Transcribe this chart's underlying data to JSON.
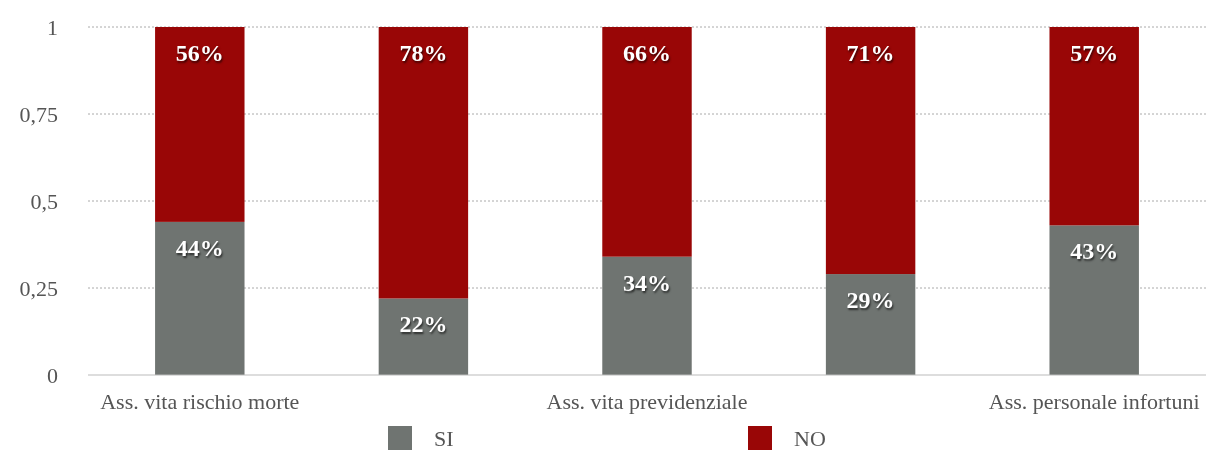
{
  "chart_data": {
    "type": "bar",
    "stacked": true,
    "categories": [
      "Ass. vita rischio morte",
      null,
      "Ass. vita previdenziale",
      null,
      "Ass. personale infortuni"
    ],
    "series": [
      {
        "name": "SI",
        "color": "#6f7471",
        "values": [
          0.44,
          0.22,
          0.34,
          0.29,
          0.43
        ],
        "value_labels": [
          "44%",
          "22%",
          "34%",
          "29%",
          "43%"
        ]
      },
      {
        "name": "NO",
        "color": "#990606",
        "values": [
          0.56,
          0.78,
          0.66,
          0.71,
          0.57
        ],
        "value_labels": [
          "56%",
          "78%",
          "66%",
          "71%",
          "57%"
        ]
      }
    ],
    "ylim": [
      0,
      1
    ],
    "yticks": [
      0,
      {
        "value": 0.25,
        "label": "0,25"
      },
      {
        "value": 0.5,
        "label": "0,5"
      },
      {
        "value": 0.75,
        "label": "0,75"
      },
      1
    ],
    "grid": "y",
    "legend": "bottom"
  }
}
